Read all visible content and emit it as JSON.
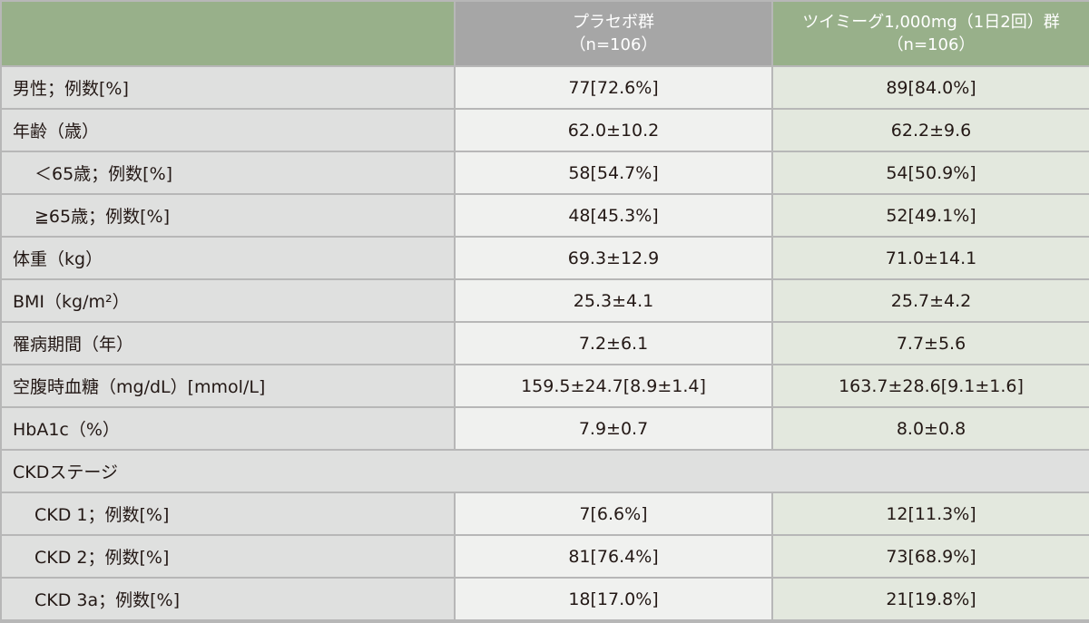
{
  "header": {
    "col1": "",
    "placebo": {
      "name": "プラセボ群",
      "n": "（n=106）"
    },
    "drug": {
      "name": "ツイミーグ1,000mg（1日2回）群",
      "n": "（n=106）"
    }
  },
  "rows": [
    {
      "label": "男性；例数[%]",
      "placebo": "77[72.6%]",
      "drug": "89[84.0%]",
      "indent": false
    },
    {
      "label": "年齢（歳）",
      "placebo": "62.0±10.2",
      "drug": "62.2±9.6",
      "indent": false
    },
    {
      "label": "＜65歳；例数[%]",
      "placebo": "58[54.7%]",
      "drug": "54[50.9%]",
      "indent": true
    },
    {
      "label": "≧65歳；例数[%]",
      "placebo": "48[45.3%]",
      "drug": "52[49.1%]",
      "indent": true
    },
    {
      "label": "体重（kg）",
      "placebo": "69.3±12.9",
      "drug": "71.0±14.1",
      "indent": false
    },
    {
      "label": "BMI（kg/m²）",
      "placebo": "25.3±4.1",
      "drug": "25.7±4.2",
      "indent": false
    },
    {
      "label": "罹病期間（年）",
      "placebo": "7.2±6.1",
      "drug": "7.7±5.6",
      "indent": false
    },
    {
      "label": "空腹時血糖（mg/dL）[mmol/L]",
      "placebo": "159.5±24.7[8.9±1.4]",
      "drug": "163.7±28.6[9.1±1.6]",
      "indent": false
    },
    {
      "label": "HbA1c（%）",
      "placebo": "7.9±0.7",
      "drug": "8.0±0.8",
      "indent": false
    }
  ],
  "section": "CKDステージ",
  "ckd_rows": [
    {
      "label": "CKD 1；例数[%]",
      "placebo": "7[6.6%]",
      "drug": "12[11.3%]"
    },
    {
      "label": "CKD 2；例数[%]",
      "placebo": "81[76.4%]",
      "drug": "73[68.9%]"
    },
    {
      "label": "CKD 3a；例数[%]",
      "placebo": "18[17.0%]",
      "drug": "21[19.8%]"
    }
  ]
}
